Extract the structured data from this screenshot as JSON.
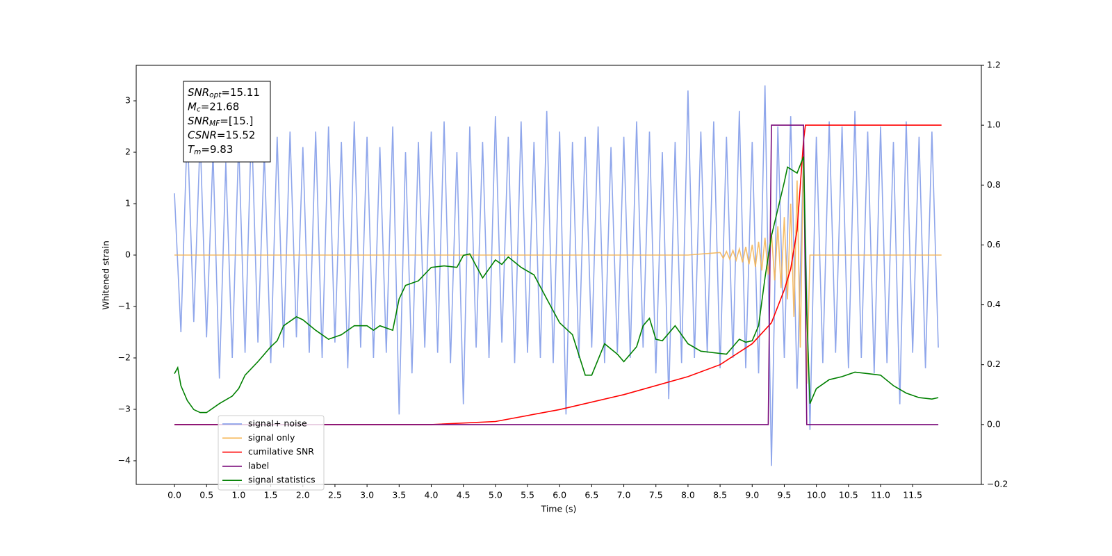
{
  "chart_data": {
    "type": "line",
    "xlabel": "Time (s)",
    "ylabel": "Whitened strain",
    "xlim": [
      -0.596,
      12.57
    ],
    "ylim": [
      -4.46,
      3.69
    ],
    "y2lim": [
      -0.2,
      1.2
    ],
    "xticks": [
      {
        "value": 0,
        "label": "0.0"
      },
      {
        "value": 0.5,
        "label": "0.5"
      },
      {
        "value": 1,
        "label": "1.0"
      },
      {
        "value": 1.5,
        "label": "1.5"
      },
      {
        "value": 2,
        "label": "2.0"
      },
      {
        "value": 2.5,
        "label": "2.5"
      },
      {
        "value": 3,
        "label": "3.0"
      },
      {
        "value": 3.5,
        "label": "3.5"
      },
      {
        "value": 4,
        "label": "4.0"
      },
      {
        "value": 4.5,
        "label": "4.5"
      },
      {
        "value": 5,
        "label": "5.0"
      },
      {
        "value": 5.5,
        "label": "5.5"
      },
      {
        "value": 6,
        "label": "6.0"
      },
      {
        "value": 6.5,
        "label": "6.5"
      },
      {
        "value": 7,
        "label": "7.0"
      },
      {
        "value": 7.5,
        "label": "7.5"
      },
      {
        "value": 8,
        "label": "8.0"
      },
      {
        "value": 8.5,
        "label": "8.5"
      },
      {
        "value": 9,
        "label": "9.0"
      },
      {
        "value": 9.5,
        "label": "9.5"
      },
      {
        "value": 10,
        "label": "10.0"
      },
      {
        "value": 10.5,
        "label": "10.5"
      },
      {
        "value": 11,
        "label": "11.0"
      },
      {
        "value": 11.5,
        "label": "11.5"
      }
    ],
    "yticks": [
      {
        "value": -4,
        "label": "−4"
      },
      {
        "value": -3,
        "label": "−3"
      },
      {
        "value": -2,
        "label": "−2"
      },
      {
        "value": -1,
        "label": "−1"
      },
      0,
      1,
      2,
      3
    ],
    "y2ticks": [
      {
        "value": -0.2,
        "label": "−0.2"
      },
      {
        "value": 0,
        "label": "0.0"
      },
      {
        "value": 0.2,
        "label": "0.2"
      },
      {
        "value": 0.4,
        "label": "0.4"
      },
      {
        "value": 0.6,
        "label": "0.6"
      },
      {
        "value": 0.8,
        "label": "0.8"
      },
      {
        "value": 1,
        "label": "1.0"
      },
      {
        "value": 1.2,
        "label": "1.2"
      }
    ],
    "legend": "lower left",
    "annotation": [
      {
        "base": "SNR",
        "sub": "opt",
        "rest": "=15.11"
      },
      {
        "base": "M",
        "sub": "c",
        "rest": "=21.68"
      },
      {
        "base": "SNR",
        "sub": "MF",
        "rest": "=[15.]"
      },
      {
        "base": "CSNR",
        "sub": "",
        "rest": "=15.52"
      },
      {
        "base": "T",
        "sub": "m",
        "rest": "=9.83"
      }
    ],
    "series": [
      {
        "name": "signal+ noise",
        "color": "#7b96e8",
        "x": [
          0,
          0.1,
          0.2,
          0.3,
          0.4,
          0.5,
          0.6,
          0.7,
          0.8,
          0.9,
          1,
          1.1,
          1.2,
          1.3,
          1.4,
          1.5,
          1.6,
          1.7,
          1.8,
          1.9,
          2,
          2.1,
          2.2,
          2.3,
          2.4,
          2.5,
          2.6,
          2.7,
          2.8,
          2.9,
          3,
          3.1,
          3.2,
          3.3,
          3.4,
          3.5,
          3.6,
          3.7,
          3.8,
          3.9,
          4,
          4.1,
          4.2,
          4.3,
          4.4,
          4.5,
          4.6,
          4.7,
          4.8,
          4.9,
          5,
          5.1,
          5.2,
          5.3,
          5.4,
          5.5,
          5.6,
          5.7,
          5.8,
          5.9,
          6,
          6.1,
          6.2,
          6.3,
          6.4,
          6.5,
          6.6,
          6.7,
          6.8,
          6.9,
          7,
          7.1,
          7.2,
          7.3,
          7.4,
          7.5,
          7.6,
          7.7,
          7.8,
          7.9,
          8,
          8.1,
          8.2,
          8.3,
          8.4,
          8.5,
          8.6,
          8.7,
          8.8,
          8.9,
          9,
          9.1,
          9.2,
          9.3,
          9.4,
          9.5,
          9.6,
          9.7,
          9.8,
          9.9,
          10,
          10.1,
          10.2,
          10.3,
          10.4,
          10.5,
          10.6,
          10.7,
          10.8,
          10.9,
          11,
          11.1,
          11.2,
          11.3,
          11.4,
          11.5,
          11.6,
          11.7,
          11.8,
          11.9
        ],
        "values": [
          1.2,
          -1.5,
          2.5,
          -1.3,
          2.3,
          -1.6,
          2.0,
          -2.4,
          1.8,
          -2.0,
          2.2,
          -1.9,
          2.6,
          -1.7,
          2.0,
          -2.1,
          2.3,
          -1.8,
          2.4,
          -1.6,
          2.1,
          -1.9,
          2.4,
          -2.0,
          2.5,
          -1.7,
          2.2,
          -2.2,
          2.6,
          -1.8,
          2.3,
          -2.0,
          2.1,
          -1.9,
          2.5,
          -3.1,
          2.0,
          -2.3,
          2.2,
          -1.8,
          2.4,
          -1.9,
          2.6,
          -2.1,
          2.0,
          -2.9,
          2.5,
          -1.8,
          2.2,
          -2.0,
          2.7,
          -1.7,
          2.3,
          -2.1,
          2.6,
          -1.9,
          2.2,
          -2.0,
          2.8,
          -2.1,
          2.4,
          -3.1,
          2.2,
          -2.0,
          2.3,
          -1.8,
          2.5,
          -2.1,
          2.1,
          -1.9,
          2.3,
          -2.0,
          2.6,
          -1.8,
          2.4,
          -2.3,
          2.0,
          -2.8,
          2.2,
          -2.1,
          3.2,
          -2.0,
          2.4,
          -1.9,
          2.6,
          -2.2,
          2.3,
          -2.0,
          2.8,
          -2.2,
          2.2,
          -2.3,
          3.3,
          -4.1,
          2.5,
          -2.0,
          2.7,
          -2.6,
          2.0,
          -3.4,
          2.3,
          -2.1,
          2.6,
          -1.9,
          2.5,
          -2.2,
          2.8,
          -2.0,
          2.4,
          -2.3,
          2.5,
          -2.1,
          2.2,
          -2.9,
          2.6,
          -1.9,
          2.3,
          -2.2,
          2.4,
          -1.8
        ]
      },
      {
        "name": "signal only",
        "color": "#f5b24d",
        "x": [
          0,
          8,
          8.5,
          8.55,
          8.6,
          8.65,
          8.7,
          8.75,
          8.8,
          8.85,
          8.9,
          8.95,
          9,
          9.05,
          9.1,
          9.15,
          9.2,
          9.25,
          9.3,
          9.35,
          9.4,
          9.45,
          9.5,
          9.55,
          9.6,
          9.65,
          9.7,
          9.75,
          9.8,
          9.85,
          9.9,
          11.95
        ],
        "values": [
          0,
          0,
          0.05,
          -0.06,
          0.07,
          -0.08,
          0.09,
          -0.1,
          0.12,
          -0.14,
          0.16,
          -0.18,
          0.2,
          -0.23,
          0.26,
          -0.3,
          0.34,
          -0.38,
          0.43,
          -0.49,
          0.56,
          -0.64,
          0.74,
          -0.86,
          1.0,
          -1.2,
          1.45,
          -1.8,
          2.1,
          -2.5,
          0,
          0
        ]
      },
      {
        "name": "cumilative SNR",
        "color": "#ff0000",
        "axis": "y2",
        "x": [
          0,
          4,
          5,
          6,
          7,
          8,
          8.5,
          9,
          9.3,
          9.5,
          9.6,
          9.7,
          9.8,
          9.83,
          11.95
        ],
        "values": [
          0,
          0,
          0.01,
          0.05,
          0.1,
          0.16,
          0.2,
          0.27,
          0.34,
          0.45,
          0.52,
          0.65,
          0.95,
          1.0,
          1.0
        ]
      },
      {
        "name": "label",
        "color": "#7a0a7a",
        "axis": "y2",
        "x": [
          0,
          9.25,
          9.3,
          9.8,
          9.85,
          11.9
        ],
        "values": [
          0,
          0,
          1,
          1,
          0,
          0
        ]
      },
      {
        "name": "signal statistics",
        "color": "#008000",
        "axis": "y2",
        "x": [
          0,
          0.05,
          0.1,
          0.2,
          0.3,
          0.4,
          0.5,
          0.7,
          0.9,
          1.0,
          1.1,
          1.3,
          1.5,
          1.6,
          1.7,
          1.9,
          2.0,
          2.2,
          2.4,
          2.6,
          2.8,
          3.0,
          3.1,
          3.2,
          3.4,
          3.5,
          3.6,
          3.8,
          4.0,
          4.2,
          4.4,
          4.5,
          4.6,
          4.8,
          5.0,
          5.1,
          5.2,
          5.4,
          5.6,
          5.8,
          6.0,
          6.2,
          6.4,
          6.5,
          6.7,
          6.9,
          7.0,
          7.2,
          7.3,
          7.4,
          7.5,
          7.6,
          7.8,
          8.0,
          8.2,
          8.4,
          8.6,
          8.8,
          8.9,
          9.0,
          9.1,
          9.2,
          9.3,
          9.5,
          9.55,
          9.7,
          9.8,
          9.85,
          9.9,
          10.0,
          10.2,
          10.4,
          10.6,
          10.8,
          11.0,
          11.2,
          11.4,
          11.6,
          11.8,
          11.9
        ],
        "values": [
          0.17,
          0.19,
          0.13,
          0.08,
          0.05,
          0.04,
          0.04,
          0.07,
          0.095,
          0.12,
          0.165,
          0.21,
          0.26,
          0.28,
          0.33,
          0.36,
          0.35,
          0.315,
          0.285,
          0.3,
          0.33,
          0.33,
          0.315,
          0.33,
          0.315,
          0.42,
          0.465,
          0.48,
          0.525,
          0.53,
          0.525,
          0.565,
          0.57,
          0.49,
          0.55,
          0.535,
          0.56,
          0.525,
          0.5,
          0.42,
          0.34,
          0.3,
          0.165,
          0.165,
          0.27,
          0.235,
          0.21,
          0.26,
          0.33,
          0.355,
          0.285,
          0.28,
          0.33,
          0.27,
          0.245,
          0.24,
          0.235,
          0.285,
          0.275,
          0.28,
          0.33,
          0.49,
          0.63,
          0.81,
          0.86,
          0.84,
          0.895,
          0.37,
          0.07,
          0.12,
          0.15,
          0.16,
          0.175,
          0.17,
          0.165,
          0.13,
          0.105,
          0.09,
          0.085,
          0.09
        ]
      }
    ]
  }
}
